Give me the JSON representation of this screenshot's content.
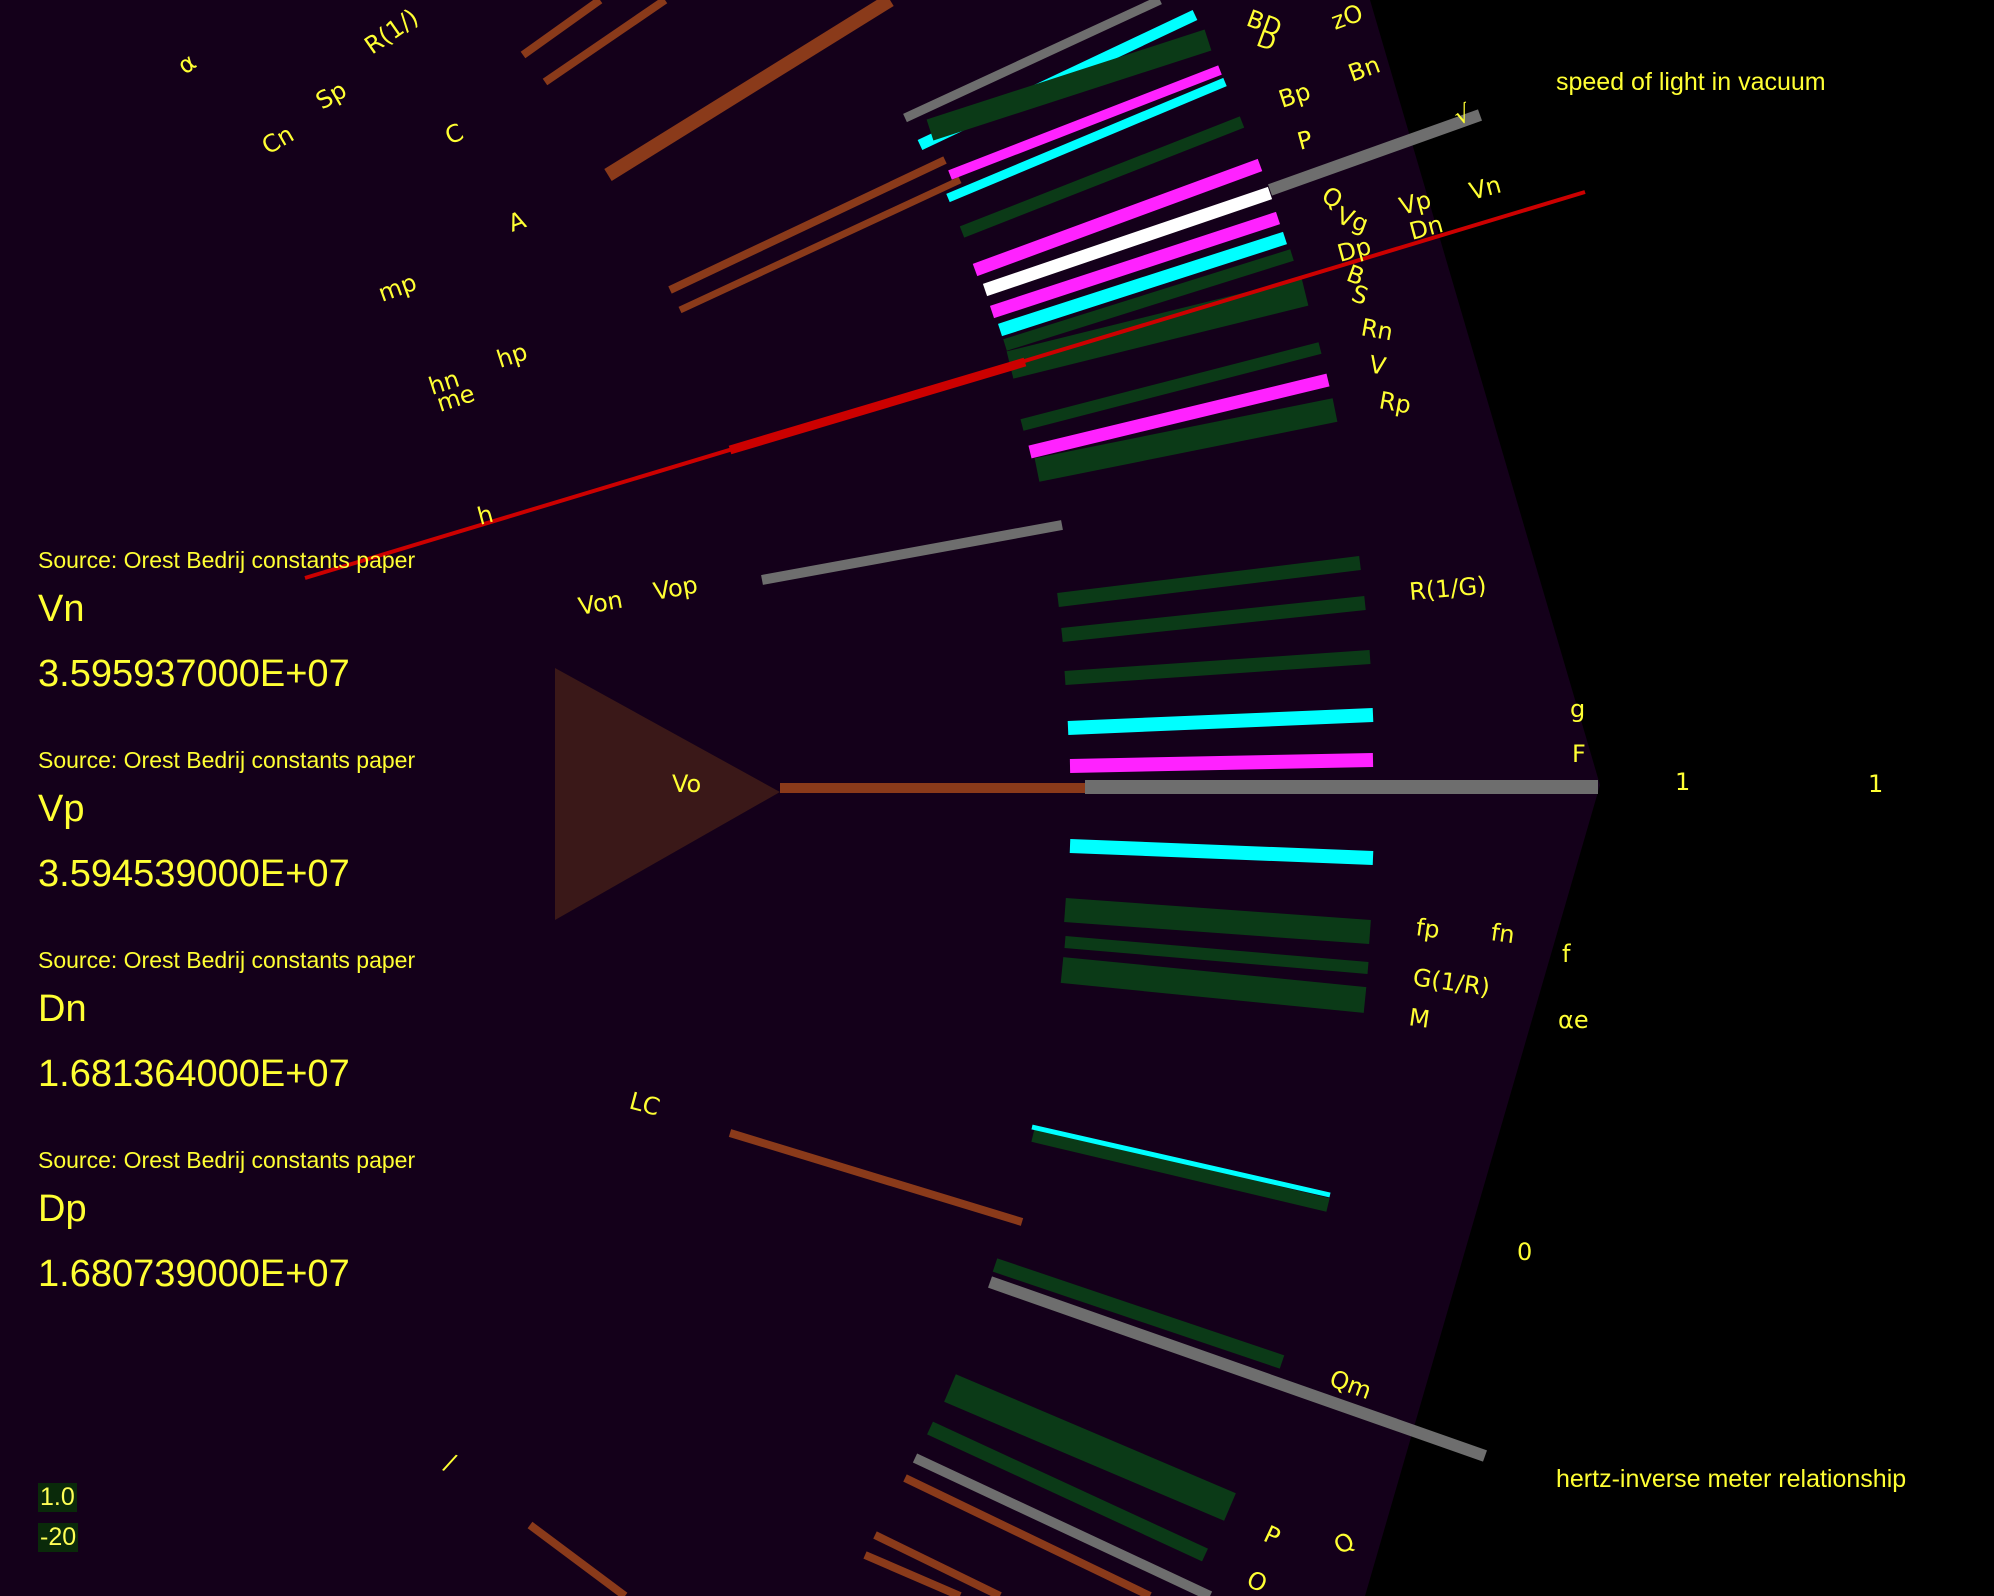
{
  "colors": {
    "background": "#000000",
    "fan": "#14001a",
    "label": "#ffff33",
    "gray": "#6e6e6e",
    "brown": "#8a3a1a",
    "red": "#cc0000",
    "cyan": "#00ffff",
    "magenta": "#ff22ff",
    "dark_green": "#0b3a17",
    "white": "#ffffff"
  },
  "corner_labels": {
    "top_right": "speed of light in vacuum",
    "bottom_right": "hertz-inverse meter relationship"
  },
  "info_panels": [
    {
      "source": "Source: Orest Bedrij constants paper",
      "name": "Vn",
      "value": "3.595937000E+07"
    },
    {
      "source": "Source: Orest Bedrij constants paper",
      "name": "Vp",
      "value": "3.594539000E+07"
    },
    {
      "source": "Source: Orest Bedrij constants paper",
      "name": "Dn",
      "value": "1.681364000E+07"
    },
    {
      "source": "Source: Orest Bedrij constants paper",
      "name": "Dp",
      "value": "1.680739000E+07"
    }
  ],
  "scale": {
    "zoom": "1.0",
    "exponent": "-20"
  },
  "constant_labels": [
    "α",
    "Cn",
    "Sp",
    "R(1/)",
    "C",
    "A",
    "mp",
    "hn",
    "me",
    "hp",
    "h",
    "BD",
    "D",
    "zO",
    "Bn",
    "Bp",
    "P",
    "Q",
    "Vg",
    "Vp",
    "Vn",
    "Dp",
    "Dn",
    "B",
    "S",
    "Rn",
    "V",
    "Rp",
    "Von",
    "Vop",
    "R(1/G)",
    "g",
    "F",
    "Vo",
    "1",
    "1",
    "fp",
    "fn",
    "f",
    "G(1/R)",
    "M",
    "αe",
    "LC",
    "0",
    "Qm",
    "/",
    "P",
    "Q",
    "O",
    "√"
  ],
  "icons": {
    "triangle": "origin-triangle-icon"
  }
}
